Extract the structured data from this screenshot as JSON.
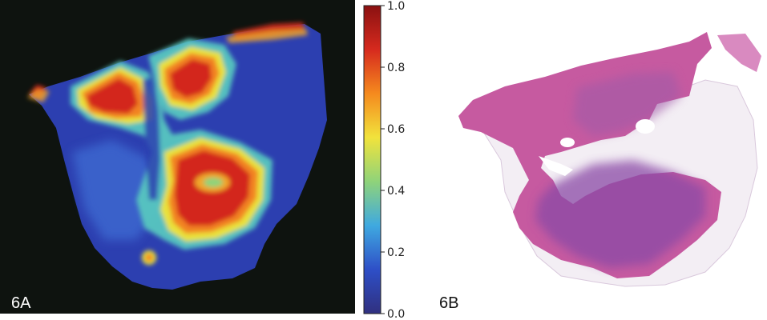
{
  "panels": {
    "a": {
      "label": "6A",
      "colorbar": {
        "ticks": [
          "0.0",
          "0.2",
          "0.4",
          "0.6",
          "0.8",
          "1.0"
        ],
        "range": [
          0.0,
          1.0
        ],
        "colormap": [
          "#30307f",
          "#2e4fc7",
          "#3fa9e0",
          "#8fd37a",
          "#f1e33c",
          "#f58a1e",
          "#d62a1e",
          "#8a1111"
        ]
      },
      "colors": {
        "background": "#0e130f",
        "tissue_low": "#2c3fb0"
      }
    },
    "b": {
      "label": "6B",
      "colors": {
        "tissue": "#c65aa0",
        "tissue_dark": "#7d4aa0",
        "fat": "#f3f0f5"
      }
    }
  }
}
